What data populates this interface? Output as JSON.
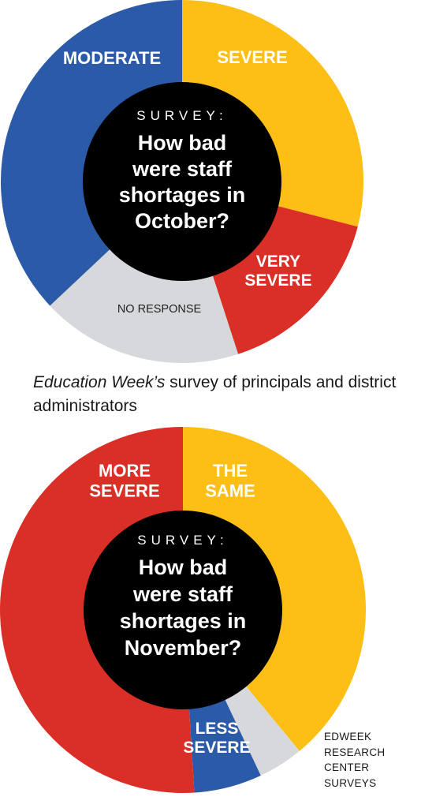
{
  "chart_data": [
    {
      "type": "donut",
      "center": {
        "kicker": "SURVEY:",
        "question_lines": [
          "How bad",
          "were staff",
          "shortages in",
          "October?"
        ]
      },
      "slices": [
        {
          "label_lines": [
            "SEVERE"
          ],
          "value": 29,
          "color": "#fdbf15",
          "label_color": "white"
        },
        {
          "label_lines": [
            "VERY",
            "SEVERE"
          ],
          "value": 16,
          "color": "#d92f27",
          "label_color": "white"
        },
        {
          "label_lines": [
            "NO RESPONSE"
          ],
          "value": 18,
          "color": "#d6d8dc",
          "label_color": "dark"
        },
        {
          "label_lines": [
            "MODERATE"
          ],
          "value": 37,
          "color": "#2b5aa8",
          "label_color": "white"
        }
      ],
      "start_angle_deg": 0
    },
    {
      "type": "donut",
      "center": {
        "kicker": "SURVEY:",
        "question_lines": [
          "How bad",
          "were staff",
          "shortages in",
          "November?"
        ]
      },
      "slices": [
        {
          "label_lines": [
            "THE",
            "SAME"
          ],
          "value": 39,
          "color": "#fdbf15",
          "label_color": "white"
        },
        {
          "label_lines": [
            ""
          ],
          "value": 4,
          "color": "#d6d8dc",
          "label_color": "dark"
        },
        {
          "label_lines": [
            "LESS",
            "SEVERE"
          ],
          "value": 6,
          "color": "#2b5aa8",
          "label_color": "white"
        },
        {
          "label_lines": [
            "MORE",
            "SEVERE"
          ],
          "value": 51,
          "color": "#d92f27",
          "label_color": "white"
        }
      ],
      "start_angle_deg": 0
    }
  ],
  "caption": {
    "italic": "Education Week’s",
    "rest": " survey of principals and district administrators"
  },
  "source": "EDWEEK\nRESEARCH\nCENTER\nSURVEYS"
}
